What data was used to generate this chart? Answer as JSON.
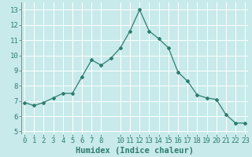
{
  "x": [
    0,
    1,
    2,
    3,
    4,
    5,
    6,
    7,
    8,
    9,
    10,
    11,
    12,
    13,
    14,
    15,
    16,
    17,
    18,
    19,
    20,
    21,
    22,
    23
  ],
  "y": [
    6.9,
    6.7,
    6.9,
    7.2,
    7.5,
    7.5,
    8.6,
    9.7,
    9.35,
    9.8,
    10.5,
    11.6,
    13.0,
    11.6,
    11.1,
    10.5,
    8.9,
    8.3,
    7.4,
    7.2,
    7.1,
    6.1,
    5.55,
    5.55
  ],
  "line_color": "#2e7d6e",
  "marker": "D",
  "marker_size": 2.0,
  "background_color": "#c8eaea",
  "grid_color": "#ffffff",
  "xlabel": "Humidex (Indice chaleur)",
  "ylim": [
    4.8,
    13.5
  ],
  "yticks": [
    5,
    6,
    7,
    8,
    9,
    10,
    11,
    12,
    13
  ],
  "xticks": [
    0,
    1,
    2,
    3,
    4,
    5,
    6,
    7,
    8,
    10,
    11,
    12,
    13,
    14,
    15,
    16,
    17,
    18,
    19,
    20,
    21,
    22,
    23
  ],
  "xlim": [
    -0.3,
    23.3
  ],
  "tick_color": "#2e7d6e",
  "label_color": "#2e7d6e",
  "xlabel_fontsize": 7.5,
  "tick_fontsize": 6.5
}
